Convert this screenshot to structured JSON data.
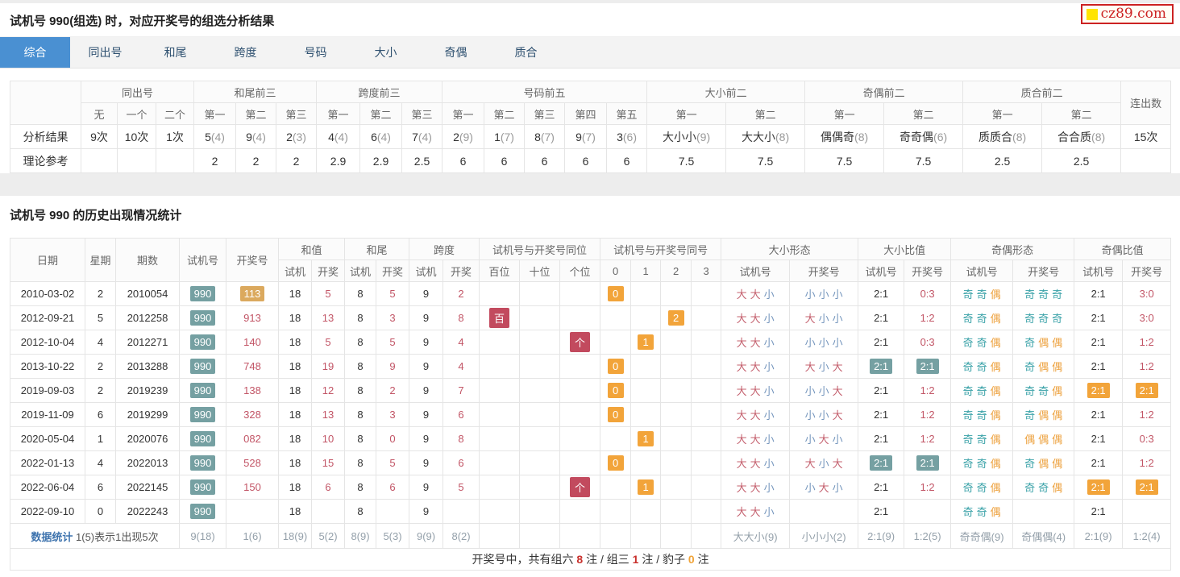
{
  "page": {
    "logo_text": "cz89.com"
  },
  "colors": {
    "accent_blue": "#4a90d2",
    "badge_teal": "#75a0a2",
    "badge_orange": "#f2a43a",
    "badge_crimson": "#c24a5e",
    "badge_tan": "#dba95e",
    "red_text": "#c25566",
    "big_red": "#c4606e",
    "small_blue": "#7596bd",
    "odd_teal": "#3aa2a8",
    "even_orange": "#eda23f",
    "logo_red": "#cc2222",
    "logo_yellow": "#ffe400"
  },
  "analysis_section": {
    "title": "试机号 990(组选) 时，对应开奖号的组选分析结果",
    "tabs": [
      "综合",
      "同出号",
      "和尾",
      "跨度",
      "号码",
      "大小",
      "奇偶",
      "质合"
    ],
    "active_tab": "综合",
    "table": {
      "groups": [
        {
          "label": "同出号",
          "subs": [
            "无",
            "一个",
            "二个"
          ]
        },
        {
          "label": "和尾前三",
          "subs": [
            "第一",
            "第二",
            "第三"
          ]
        },
        {
          "label": "跨度前三",
          "subs": [
            "第一",
            "第二",
            "第三"
          ]
        },
        {
          "label": "号码前五",
          "subs": [
            "第一",
            "第二",
            "第三",
            "第四",
            "第五"
          ]
        },
        {
          "label": "大小前二",
          "subs": [
            "第一",
            "第二"
          ]
        },
        {
          "label": "奇偶前二",
          "subs": [
            "第一",
            "第二"
          ]
        },
        {
          "label": "质合前二",
          "subs": [
            "第一",
            "第二"
          ]
        }
      ],
      "streak_header": "连出数",
      "rows": [
        {
          "label": "分析结果",
          "cells": [
            {
              "m": "9次"
            },
            {
              "m": "10次"
            },
            {
              "m": "1次"
            },
            {
              "m": "5",
              "p": "(4)"
            },
            {
              "m": "9",
              "p": "(4)"
            },
            {
              "m": "2",
              "p": "(3)"
            },
            {
              "m": "4",
              "p": "(4)"
            },
            {
              "m": "6",
              "p": "(4)"
            },
            {
              "m": "7",
              "p": "(4)"
            },
            {
              "m": "2",
              "p": "(9)"
            },
            {
              "m": "1",
              "p": "(7)"
            },
            {
              "m": "8",
              "p": "(7)"
            },
            {
              "m": "9",
              "p": "(7)"
            },
            {
              "m": "3",
              "p": "(6)"
            },
            {
              "m": "大小小",
              "p": "(9)"
            },
            {
              "m": "大大小",
              "p": "(8)"
            },
            {
              "m": "偶偶奇",
              "p": "(8)"
            },
            {
              "m": "奇奇偶",
              "p": "(6)"
            },
            {
              "m": "质质合",
              "p": "(8)"
            },
            {
              "m": "合合质",
              "p": "(8)"
            }
          ],
          "streak": "15次"
        },
        {
          "label": "理论参考",
          "cells": [
            {
              "m": ""
            },
            {
              "m": ""
            },
            {
              "m": ""
            },
            {
              "m": "2"
            },
            {
              "m": "2"
            },
            {
              "m": "2"
            },
            {
              "m": "2.9"
            },
            {
              "m": "2.9"
            },
            {
              "m": "2.5"
            },
            {
              "m": "6"
            },
            {
              "m": "6"
            },
            {
              "m": "6"
            },
            {
              "m": "6"
            },
            {
              "m": "6"
            },
            {
              "m": "7.5"
            },
            {
              "m": "7.5"
            },
            {
              "m": "7.5"
            },
            {
              "m": "7.5"
            },
            {
              "m": "2.5"
            },
            {
              "m": "2.5"
            }
          ],
          "streak": ""
        }
      ]
    }
  },
  "history_section": {
    "title": "试机号 990 的历史出现情况统计",
    "header": {
      "simple": [
        "日期",
        "星期",
        "期数",
        "试机号",
        "开奖号"
      ],
      "groups": [
        {
          "label": "和值",
          "subs": [
            "试机",
            "开奖"
          ]
        },
        {
          "label": "和尾",
          "subs": [
            "试机",
            "开奖"
          ]
        },
        {
          "label": "跨度",
          "subs": [
            "试机",
            "开奖"
          ]
        },
        {
          "label": "试机号与开奖号同位",
          "subs": [
            "百位",
            "十位",
            "个位"
          ]
        },
        {
          "label": "试机号与开奖号同号",
          "subs": [
            "0",
            "1",
            "2",
            "3"
          ]
        },
        {
          "label": "大小形态",
          "subs": [
            "试机号",
            "开奖号"
          ]
        },
        {
          "label": "大小比值",
          "subs": [
            "试机号",
            "开奖号"
          ]
        },
        {
          "label": "奇偶形态",
          "subs": [
            "试机号",
            "开奖号"
          ]
        },
        {
          "label": "奇偶比值",
          "subs": [
            "试机号",
            "开奖号"
          ]
        }
      ]
    },
    "rows": [
      {
        "date": "2010-03-02",
        "week": "2",
        "issue": "2010054",
        "shiji": "990",
        "kaijiang": "113",
        "kj_badge": true,
        "hz_s": "18",
        "hz_k": "5",
        "hw_s": "8",
        "hw_k": "5",
        "kd_s": "9",
        "kd_k": "2",
        "pos_bai": "",
        "pos_shi": "",
        "pos_ge": "",
        "same_0": "0",
        "same_1": "",
        "same_2": "",
        "same_3": "",
        "dx_s": "大大小",
        "dx_k": "小小小",
        "dxb_s": "2:1",
        "dxb_k": "0:3",
        "dxb_match": false,
        "jo_s": "奇奇偶",
        "jo_k": "奇奇奇",
        "job_s": "2:1",
        "job_k": "3:0",
        "job_match": false
      },
      {
        "date": "2012-09-21",
        "week": "5",
        "issue": "2012258",
        "shiji": "990",
        "kaijiang": "913",
        "kj_badge": false,
        "hz_s": "18",
        "hz_k": "13",
        "hw_s": "8",
        "hw_k": "3",
        "kd_s": "9",
        "kd_k": "8",
        "pos_bai": "百",
        "pos_shi": "",
        "pos_ge": "",
        "same_0": "",
        "same_1": "",
        "same_2": "2",
        "same_3": "",
        "dx_s": "大大小",
        "dx_k": "大小小",
        "dxb_s": "2:1",
        "dxb_k": "1:2",
        "dxb_match": false,
        "jo_s": "奇奇偶",
        "jo_k": "奇奇奇",
        "job_s": "2:1",
        "job_k": "3:0",
        "job_match": false
      },
      {
        "date": "2012-10-04",
        "week": "4",
        "issue": "2012271",
        "shiji": "990",
        "kaijiang": "140",
        "kj_badge": false,
        "hz_s": "18",
        "hz_k": "5",
        "hw_s": "8",
        "hw_k": "5",
        "kd_s": "9",
        "kd_k": "4",
        "pos_bai": "",
        "pos_shi": "",
        "pos_ge": "个",
        "same_0": "",
        "same_1": "1",
        "same_2": "",
        "same_3": "",
        "dx_s": "大大小",
        "dx_k": "小小小",
        "dxb_s": "2:1",
        "dxb_k": "0:3",
        "dxb_match": false,
        "jo_s": "奇奇偶",
        "jo_k": "奇偶偶",
        "job_s": "2:1",
        "job_k": "1:2",
        "job_match": false
      },
      {
        "date": "2013-10-22",
        "week": "2",
        "issue": "2013288",
        "shiji": "990",
        "kaijiang": "748",
        "kj_badge": false,
        "hz_s": "18",
        "hz_k": "19",
        "hw_s": "8",
        "hw_k": "9",
        "kd_s": "9",
        "kd_k": "4",
        "pos_bai": "",
        "pos_shi": "",
        "pos_ge": "",
        "same_0": "0",
        "same_1": "",
        "same_2": "",
        "same_3": "",
        "dx_s": "大大小",
        "dx_k": "大小大",
        "dxb_s": "2:1",
        "dxb_k": "2:1",
        "dxb_match": true,
        "jo_s": "奇奇偶",
        "jo_k": "奇偶偶",
        "job_s": "2:1",
        "job_k": "1:2",
        "job_match": false
      },
      {
        "date": "2019-09-03",
        "week": "2",
        "issue": "2019239",
        "shiji": "990",
        "kaijiang": "138",
        "kj_badge": false,
        "hz_s": "18",
        "hz_k": "12",
        "hw_s": "8",
        "hw_k": "2",
        "kd_s": "9",
        "kd_k": "7",
        "pos_bai": "",
        "pos_shi": "",
        "pos_ge": "",
        "same_0": "0",
        "same_1": "",
        "same_2": "",
        "same_3": "",
        "dx_s": "大大小",
        "dx_k": "小小大",
        "dxb_s": "2:1",
        "dxb_k": "1:2",
        "dxb_match": false,
        "jo_s": "奇奇偶",
        "jo_k": "奇奇偶",
        "job_s": "2:1",
        "job_k": "2:1",
        "job_match": true
      },
      {
        "date": "2019-11-09",
        "week": "6",
        "issue": "2019299",
        "shiji": "990",
        "kaijiang": "328",
        "kj_badge": false,
        "hz_s": "18",
        "hz_k": "13",
        "hw_s": "8",
        "hw_k": "3",
        "kd_s": "9",
        "kd_k": "6",
        "pos_bai": "",
        "pos_shi": "",
        "pos_ge": "",
        "same_0": "0",
        "same_1": "",
        "same_2": "",
        "same_3": "",
        "dx_s": "大大小",
        "dx_k": "小小大",
        "dxb_s": "2:1",
        "dxb_k": "1:2",
        "dxb_match": false,
        "jo_s": "奇奇偶",
        "jo_k": "奇偶偶",
        "job_s": "2:1",
        "job_k": "1:2",
        "job_match": false
      },
      {
        "date": "2020-05-04",
        "week": "1",
        "issue": "2020076",
        "shiji": "990",
        "kaijiang": "082",
        "kj_badge": false,
        "hz_s": "18",
        "hz_k": "10",
        "hw_s": "8",
        "hw_k": "0",
        "kd_s": "9",
        "kd_k": "8",
        "pos_bai": "",
        "pos_shi": "",
        "pos_ge": "",
        "same_0": "",
        "same_1": "1",
        "same_2": "",
        "same_3": "",
        "dx_s": "大大小",
        "dx_k": "小大小",
        "dxb_s": "2:1",
        "dxb_k": "1:2",
        "dxb_match": false,
        "jo_s": "奇奇偶",
        "jo_k": "偶偶偶",
        "job_s": "2:1",
        "job_k": "0:3",
        "job_match": false
      },
      {
        "date": "2022-01-13",
        "week": "4",
        "issue": "2022013",
        "shiji": "990",
        "kaijiang": "528",
        "kj_badge": false,
        "hz_s": "18",
        "hz_k": "15",
        "hw_s": "8",
        "hw_k": "5",
        "kd_s": "9",
        "kd_k": "6",
        "pos_bai": "",
        "pos_shi": "",
        "pos_ge": "",
        "same_0": "0",
        "same_1": "",
        "same_2": "",
        "same_3": "",
        "dx_s": "大大小",
        "dx_k": "大小大",
        "dxb_s": "2:1",
        "dxb_k": "2:1",
        "dxb_match": true,
        "jo_s": "奇奇偶",
        "jo_k": "奇偶偶",
        "job_s": "2:1",
        "job_k": "1:2",
        "job_match": false
      },
      {
        "date": "2022-06-04",
        "week": "6",
        "issue": "2022145",
        "shiji": "990",
        "kaijiang": "150",
        "kj_badge": false,
        "hz_s": "18",
        "hz_k": "6",
        "hw_s": "8",
        "hw_k": "6",
        "kd_s": "9",
        "kd_k": "5",
        "pos_bai": "",
        "pos_shi": "",
        "pos_ge": "个",
        "same_0": "",
        "same_1": "1",
        "same_2": "",
        "same_3": "",
        "dx_s": "大大小",
        "dx_k": "小大小",
        "dxb_s": "2:1",
        "dxb_k": "1:2",
        "dxb_match": false,
        "jo_s": "奇奇偶",
        "jo_k": "奇奇偶",
        "job_s": "2:1",
        "job_k": "2:1",
        "job_match": true
      },
      {
        "date": "2022-09-10",
        "week": "0",
        "issue": "2022243",
        "shiji": "990",
        "kaijiang": "",
        "kj_badge": false,
        "hz_s": "18",
        "hz_k": "",
        "hw_s": "8",
        "hw_k": "",
        "kd_s": "9",
        "kd_k": "",
        "pos_bai": "",
        "pos_shi": "",
        "pos_ge": "",
        "same_0": "",
        "same_1": "",
        "same_2": "",
        "same_3": "",
        "dx_s": "大大小",
        "dx_k": "",
        "dxb_s": "2:1",
        "dxb_k": "",
        "dxb_match": false,
        "jo_s": "奇奇偶",
        "jo_k": "",
        "job_s": "2:1",
        "job_k": "",
        "job_match": false
      }
    ],
    "stats": {
      "label": "数据统计",
      "note": "1(5)表示1出现5次",
      "shiji": "9(18)",
      "kaijiang": "1(6)",
      "hz_s": "18(9)",
      "hz_k": "5(2)",
      "hw_s": "8(9)",
      "hw_k": "5(3)",
      "kd_s": "9(9)",
      "kd_k": "8(2)",
      "dx_s": "大大小(9)",
      "dx_k": "小小小(2)",
      "dxb_s": "2:1(9)",
      "dxb_k": "1:2(5)",
      "jo_s": "奇奇偶(9)",
      "jo_k": "奇偶偶(4)",
      "job_s": "2:1(9)",
      "job_k": "1:2(4)"
    },
    "footer": {
      "seg1": "开奖号中，共有组六 ",
      "liu": "8",
      "seg2": " 注 / 组三 ",
      "san": "1",
      "seg3": " 注 / 豹子 ",
      "bao": "0",
      "seg4": " 注"
    }
  }
}
